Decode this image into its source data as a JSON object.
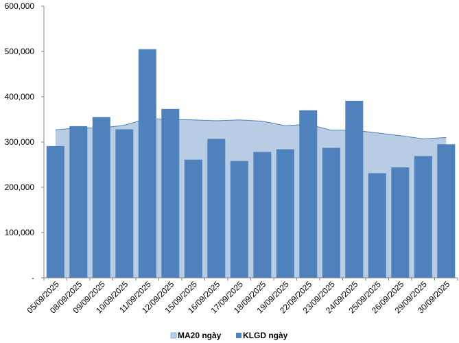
{
  "chart_data": {
    "type": "bar",
    "categories": [
      "05/09/2025",
      "08/09/2025",
      "09/09/2025",
      "10/09/2025",
      "11/09/2025",
      "12/09/2025",
      "15/09/2025",
      "16/09/2025",
      "17/09/2025",
      "18/09/2025",
      "19/09/2025",
      "22/09/2025",
      "23/09/2025",
      "24/09/2025",
      "25/09/2025",
      "26/09/2025",
      "29/09/2025",
      "30/09/2025"
    ],
    "series": [
      {
        "name": "MA20 ngày",
        "render": "area",
        "color": "#b8cce4",
        "stroke": "#4f81bd",
        "values": [
          327000,
          331000,
          331000,
          337000,
          352000,
          350000,
          349000,
          347000,
          349000,
          346000,
          336000,
          339000,
          326000,
          326000,
          320000,
          314000,
          307000,
          310000
        ]
      },
      {
        "name": "KLGD ngày",
        "render": "bar",
        "color": "#4f81bd",
        "values": [
          291000,
          335000,
          355000,
          328000,
          505000,
          373000,
          261000,
          307000,
          258000,
          278000,
          284000,
          370000,
          287000,
          391000,
          231000,
          244000,
          269000,
          295000
        ]
      }
    ],
    "yticks": [
      "600,000",
      "500,000",
      "400,000",
      "300,000",
      "200,000",
      "100,000",
      "-"
    ],
    "ytick_values": [
      600000,
      500000,
      400000,
      300000,
      200000,
      100000,
      0
    ],
    "ylim": [
      0,
      600000
    ],
    "grid": false,
    "legend_position": "bottom"
  }
}
